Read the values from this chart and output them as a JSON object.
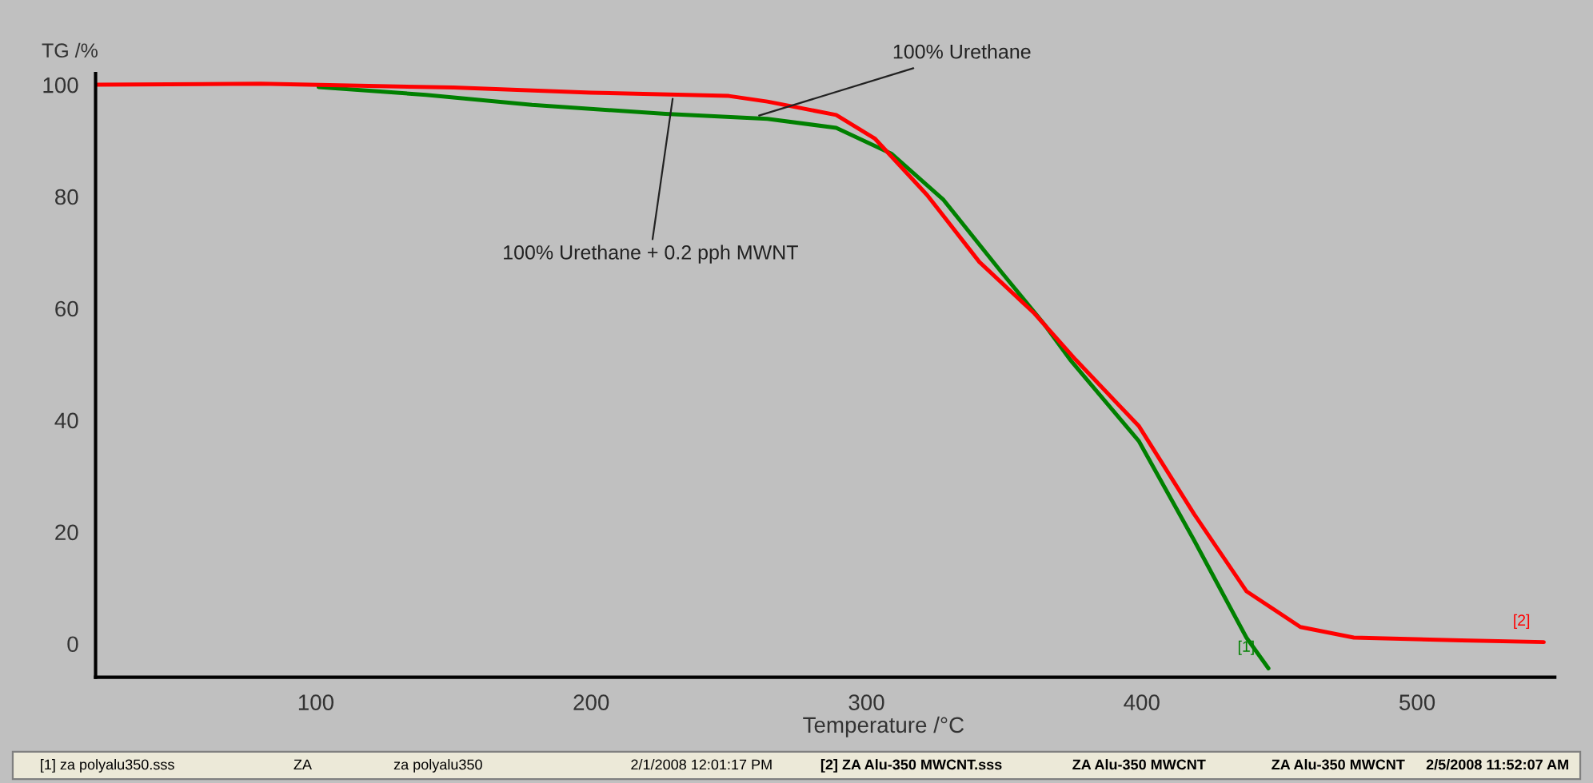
{
  "chart_data": {
    "type": "line",
    "ylabel": "TG /%",
    "xlabel": "Temperature /°C",
    "xlim": [
      20,
      550
    ],
    "xticks": [
      100,
      200,
      300,
      400,
      500
    ],
    "ylim": [
      -6,
      102
    ],
    "yticks": [
      0,
      20,
      40,
      60,
      80,
      100
    ],
    "grid": false,
    "legend": false,
    "marker": "none",
    "line_style": "solid",
    "series": [
      {
        "name": "[1]",
        "color": "#008000",
        "x": [
          101,
          140,
          178.5,
          227,
          264,
          289,
          309,
          328,
          349,
          364.5,
          374,
          399,
          419,
          438,
          446
        ],
        "values": [
          99.6,
          98.2,
          96.4,
          94.8,
          93.9,
          92.3,
          87.7,
          79.4,
          66.5,
          57.2,
          50.8,
          36.2,
          18.5,
          1.1,
          -4.4
        ]
      },
      {
        "name": "[2]",
        "color": "#ff0000",
        "x": [
          20,
          80,
          150,
          200,
          250,
          264,
          289,
          303,
          322,
          341,
          361,
          376,
          399,
          419,
          438,
          457.6,
          477,
          516,
          546
        ],
        "values": [
          100,
          100.2,
          99.5,
          98.6,
          98.0,
          97.0,
          94.6,
          90.4,
          80.3,
          68.3,
          59.1,
          50.8,
          38.9,
          23.2,
          9.4,
          3.0,
          1.1,
          0.6,
          0.3
        ]
      }
    ],
    "annotations": [
      {
        "text": "100% Urethane",
        "x": 261,
        "y": 94.5
      },
      {
        "text": "100% Urethane + 0.2 pph MWNT",
        "x": 229.6,
        "y": 97.5
      },
      "[1] za polyalu350.sss",
      "ZA",
      "za polyalu350",
      "2/1/2008 12:01:17 PM",
      "[2] ZA Alu-350 MWCNT.sss",
      "ZA Alu-350 MWCNT",
      "ZA Alu-350 MWCNT",
      "2/5/2008 11:52:07 AM"
    ]
  }
}
